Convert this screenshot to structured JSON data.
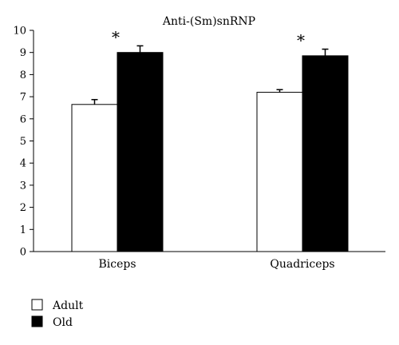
{
  "chart_data": {
    "type": "bar",
    "title": "Anti-(Sm)snRNP",
    "categories": [
      "Biceps",
      "Quadriceps"
    ],
    "series": [
      {
        "name": "Adult",
        "values": [
          6.65,
          7.2
        ],
        "errors": [
          0.22,
          0.12
        ],
        "color": "#ffffff"
      },
      {
        "name": "Old",
        "values": [
          9.0,
          8.85
        ],
        "errors": [
          0.3,
          0.3
        ],
        "color": "#000000"
      }
    ],
    "significance": [
      "*",
      "*"
    ],
    "xlabel": "",
    "ylabel": "",
    "ylim": [
      0,
      10
    ],
    "yticks": [
      "0",
      "1",
      "2",
      "3",
      "4",
      "5",
      "6",
      "7",
      "8",
      "9",
      "10"
    ],
    "grid": false,
    "legend": "bottom-left"
  }
}
